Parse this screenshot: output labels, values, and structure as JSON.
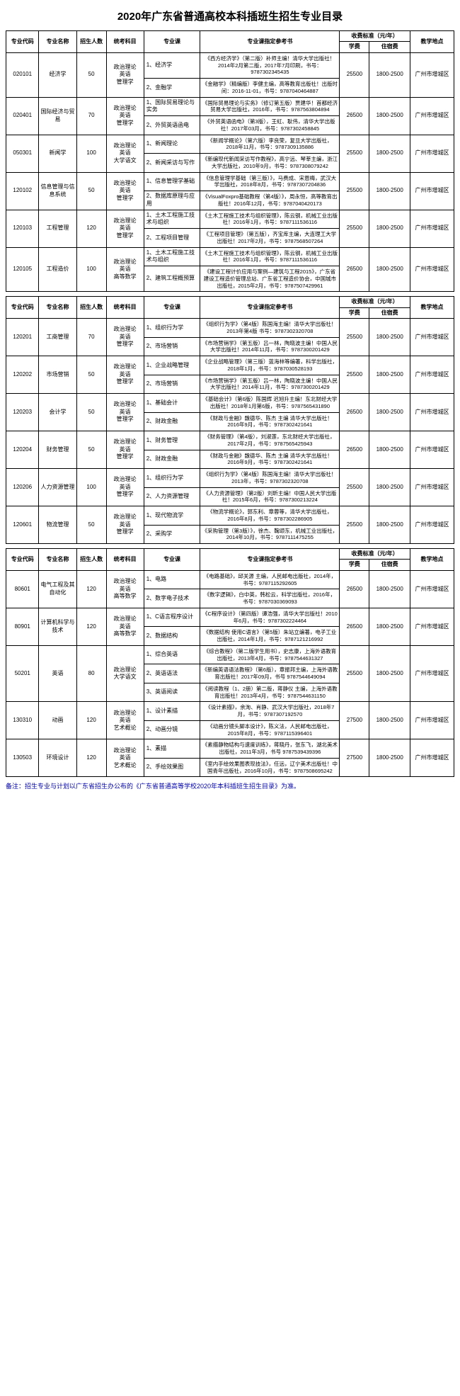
{
  "title": "2020年广东省普通高校本科插班生招生专业目录",
  "headers": {
    "code": "专业代码",
    "name": "专业名称",
    "quota": "招生人数",
    "exam": "统考科目",
    "subject": "专业课",
    "books": "专业课指定参考书",
    "fee_group": "收费标准（元/年）",
    "tuition": "学费",
    "dorm": "住宿费",
    "location": "教学地点"
  },
  "groups": [
    {
      "rows": [
        {
          "code": "020101",
          "name": "经济学",
          "quota": "50",
          "exam": "政治理论\n英语\n管理学",
          "subjects": [
            "1、经济学",
            "2、金融学"
          ],
          "books": [
            "《西方经济学》（第二版）补师主编！清华大学出版社！2014年2月第二版，2017年7月印刷，书号：9787302345435",
            "《金融学》（精编版）李健主编，高等教育出版社！出版时间：2016-11-01，书号：9787040464887"
          ],
          "tuition": "25500",
          "dorm": "1800-2500",
          "location": "广州市增城区"
        },
        {
          "code": "020401",
          "name": "国际经济与贸易",
          "quota": "70",
          "exam": "政治理论\n英语\n管理学",
          "subjects": [
            "1、国际贸易理论与实务",
            "2、外贸英语函电"
          ],
          "books": [
            "《国际贸易理论与实务》（修订第五版）贾建华！首都经济贸易大学出版社，2016年，书号：9787563804894",
            "《外贸英语函电》（第3版），王虹、耿伟，清华大学出版社！2017年03月，书号：9787302458845"
          ],
          "tuition": "26500",
          "dorm": "1800-2500",
          "location": "广州市增城区"
        },
        {
          "code": "050301",
          "name": "新闻学",
          "quota": "100",
          "exam": "政治理论\n英语\n大学语文",
          "subjects": [
            "1、新闻理论",
            "2、新闻采访与写作"
          ],
          "books": [
            "《新闻学概论》（第六版）李良荣，复旦大学出版社，2018年11月，书号：9787309135886",
            "《新编现代新闻采访写作教程》，高宁远、琴莘主编，浙江大学出版社，2010年9月，书号：9787308079242"
          ],
          "tuition": "25500",
          "dorm": "1800-2500",
          "location": "广州市增城区"
        },
        {
          "code": "120102",
          "name": "信息管理与信息系统",
          "quota": "50",
          "exam": "政治理论\n英语\n管理学",
          "subjects": [
            "1、信息管理学基础",
            "2、数据库原理与应用"
          ],
          "books": [
            "《信息管理学基础（第三版）》，马费成、宋恩梅，武汉大学出版社，2018年8月，书号：9787307204836",
            "《VisualFoxpro基础教程（第4版）》，周永恒，高等教育出版社！2016年12月，书号：9787040420173"
          ],
          "tuition": "25500",
          "dorm": "1800-2500",
          "location": "广州市增城区"
        },
        {
          "code": "120103",
          "name": "工程管理",
          "quota": "120",
          "exam": "政治理论\n英语\n管理学",
          "subjects": [
            "1、土木工程施工技术与组织",
            "2、工程项目管理"
          ],
          "books": [
            "《土木工程施工技术与组织管理》，陈云钢，机械工业出版社！2016年1月，书号：9787111536116",
            "《工程项目管理》（第五版），齐宝库主编，大连理工大学出版社！2017年2月，书号：9787568507264"
          ],
          "tuition": "25500",
          "dorm": "1800-2500",
          "location": "广州市增城区"
        },
        {
          "code": "120105",
          "name": "工程造价",
          "quota": "100",
          "exam": "政治理论\n英语\n高等数学",
          "subjects": [
            "1、土木工程施工技术与组织",
            "2、建筑工程概预算"
          ],
          "books": [
            "《土木工程施工技术与组织管理》，陈云钢，机械工业出版社！2016年1月，书号：9787111536116",
            "《建设工程计价应用与案例—建筑与工程2015》，广东省建设工程造价管理总站、广东省工程造价协会，中国城市出版社，2015年2月，书号：9787507429961"
          ],
          "tuition": "26500",
          "dorm": "1800-2500",
          "location": "广州市增城区"
        }
      ]
    },
    {
      "rows": [
        {
          "code": "120201",
          "name": "工商管理",
          "quota": "70",
          "exam": "政治理论\n英语\n管理学",
          "subjects": [
            "1、组织行为学",
            "2、市场营销"
          ],
          "books": [
            "《组织行为学》（第4版）陈国海主编！清华大学出版社！2013年第4版 书号：9787302320708",
            "《市场营销学》（第五版）吕一林，陶晓波主编！中国人民大学出版社！2014年11月，书号：9787300201429"
          ],
          "tuition": "25500",
          "dorm": "1800-2500",
          "location": "广州市增城区"
        },
        {
          "code": "120202",
          "name": "市场营销",
          "quota": "50",
          "exam": "政治理论\n英语\n管理学",
          "subjects": [
            "1、企业战略管理",
            "2、市场营销"
          ],
          "books": [
            "《企业战略管理》（第三版）蓝海林等编著，科学出版社，2018年1月，书号：9787030528193",
            "《市场营销学》（第五版）吕一林，陶晓波主编！中国人民大学出版社！2014年11月，书号：9787300201429"
          ],
          "tuition": "25500",
          "dorm": "1800-2500",
          "location": "广州市增城区"
        },
        {
          "code": "120203",
          "name": "会计学",
          "quota": "50",
          "exam": "政治理论\n英语\n管理学",
          "subjects": [
            "1、基础会计",
            "2、财政金融"
          ],
          "books": [
            "《基础会计》（第6版）陈国辉 迟旭升主编！东北财经大学出版社！2018年1月第6版，书号：9787565431890",
            "《财政与金融》魏德华、陈杰 主编 清华大学出版社！2016年9月，书号：9787302421641"
          ],
          "tuition": "26500",
          "dorm": "1800-2500",
          "location": "广州市增城区"
        },
        {
          "code": "120204",
          "name": "财务管理",
          "quota": "50",
          "exam": "政治理论\n英语\n管理学",
          "subjects": [
            "1、财务管理",
            "2、财政金融"
          ],
          "books": [
            "《财务管理》（第4版），刘淑莲，东北财经大学出版社，2017年2月，书号：9787565425943",
            "《财政与金融》魏德华、陈杰 主编 清华大学出版社！2016年9月，书号：9787302421641"
          ],
          "tuition": "26500",
          "dorm": "1800-2500",
          "location": "广州市增城区"
        },
        {
          "code": "120206",
          "name": "人力资源管理",
          "quota": "100",
          "exam": "政治理论\n英语\n管理学",
          "subjects": [
            "1、组织行为学",
            "2、人力资源管理"
          ],
          "books": [
            "《组织行为学》（第4版）陈国海主编！清华大学出版社！2013年，书号：9787302320708",
            "《人力资源管理》（第2版）刘昕主编！中国人民大学出版社！2015年6月，书号：9787300213224"
          ],
          "tuition": "25500",
          "dorm": "1800-2500",
          "location": "广州市增城区"
        },
        {
          "code": "120601",
          "name": "物流管理",
          "quota": "50",
          "exam": "政治理论\n英语\n管理学",
          "subjects": [
            "1、现代物流学",
            "2、采购学"
          ],
          "books": [
            "《物流学概论》，郭东利、章蓉等，清华大学出版社，2016年8月，书号：9787302286905",
            "《采购管理（第3版）》，徐杰、鞠颂东，机械工业出版社，2014年10月，书号：9787111475255"
          ],
          "tuition": "25500",
          "dorm": "1800-2500",
          "location": "广州市增城区"
        }
      ]
    },
    {
      "rows": [
        {
          "code": "80601",
          "name": "电气工程及其自动化",
          "quota": "120",
          "exam": "政治理论\n英语\n高等数学",
          "subjects": [
            "1、电路",
            "2、数字电子技术"
          ],
          "books": [
            "《电路基础》，邱关源 主编，人民邮电出版社，2014年，书号：9787115292605",
            "《数字逻辑》，白中英，韩松云，科学出版社，2016年，书号：9787030369093"
          ],
          "tuition": "26500",
          "dorm": "1800-2500",
          "location": "广州市增城区"
        },
        {
          "code": "80901",
          "name": "计算机科学与技术",
          "quota": "120",
          "exam": "政治理论\n英语\n高等数学",
          "subjects": [
            "1、C语言程序设计",
            "2、数据结构"
          ],
          "books": [
            "《C程序设计》（第四版）谭浩强，清华大学出版社！2010年6月，书号：9787302224464",
            "《数据结构 使用C语言》（第5版）朱站立编著，电子工业出版社，2014年1月，书号：9787121216992"
          ],
          "tuition": "26500",
          "dorm": "1800-2500",
          "location": "广州市增城区"
        },
        {
          "code": "50201",
          "name": "英语",
          "quota": "80",
          "exam": "政治理论\n大学语文",
          "subjects": [
            "1、综合英语",
            "2、英语语法",
            "3、英语阅读"
          ],
          "books": [
            "《综合教程》（第二版学生用书），史志康，上海外语教育出版社，2013年4月，书号：9787544631327",
            "《新编英语语法教程》（第6版），章振邦主编，上海外语教育出版社！2017年09月，书号 9787544649094",
            "《阅读教程（1、2册）第二版，蒋静仪 主编，上海外语教育出版社！2013年4月，书号：9787544631150"
          ],
          "tuition": "25500",
          "dorm": "1800-2500",
          "location": "广州市增城区"
        },
        {
          "code": "130310",
          "name": "动画",
          "quota": "120",
          "exam": "政治理论\n英语\n艺术概论",
          "subjects": [
            "1、设计素描",
            "2、动画分镜"
          ],
          "books": [
            "《设计素描》，余洵、肖静、武汉大学出版社，2018年7月，书号：9787307192570",
            "《动画分镜头脚本设计》，陈义法，人民邮电出版社，2015年8月，书号：9787115396401"
          ],
          "tuition": "27500",
          "dorm": "1800-2500",
          "location": "广州市增城区"
        },
        {
          "code": "130503",
          "name": "环境设计",
          "quota": "120",
          "exam": "政治理论\n英语\n艺术概论",
          "subjects": [
            "1、素描",
            "2、手绘效果图"
          ],
          "books": [
            "《素描静物结构与速度训练》，蒋晓丹，张东飞，湖北美术出版社，2011年3月，书号 9787539439396",
            "《室内手绘效果图表现技法》，任远，辽宁美术出版社！中国青年出版社，2016年10月，书号：9787508695242"
          ],
          "tuition": "27500",
          "dorm": "1800-2500",
          "location": "广州市增城区"
        }
      ]
    }
  ],
  "footnote": "备注：招生专业与计划以广东省招生办公布的《广东省普通高等学校2020年本科插班生招生目录》为准。"
}
